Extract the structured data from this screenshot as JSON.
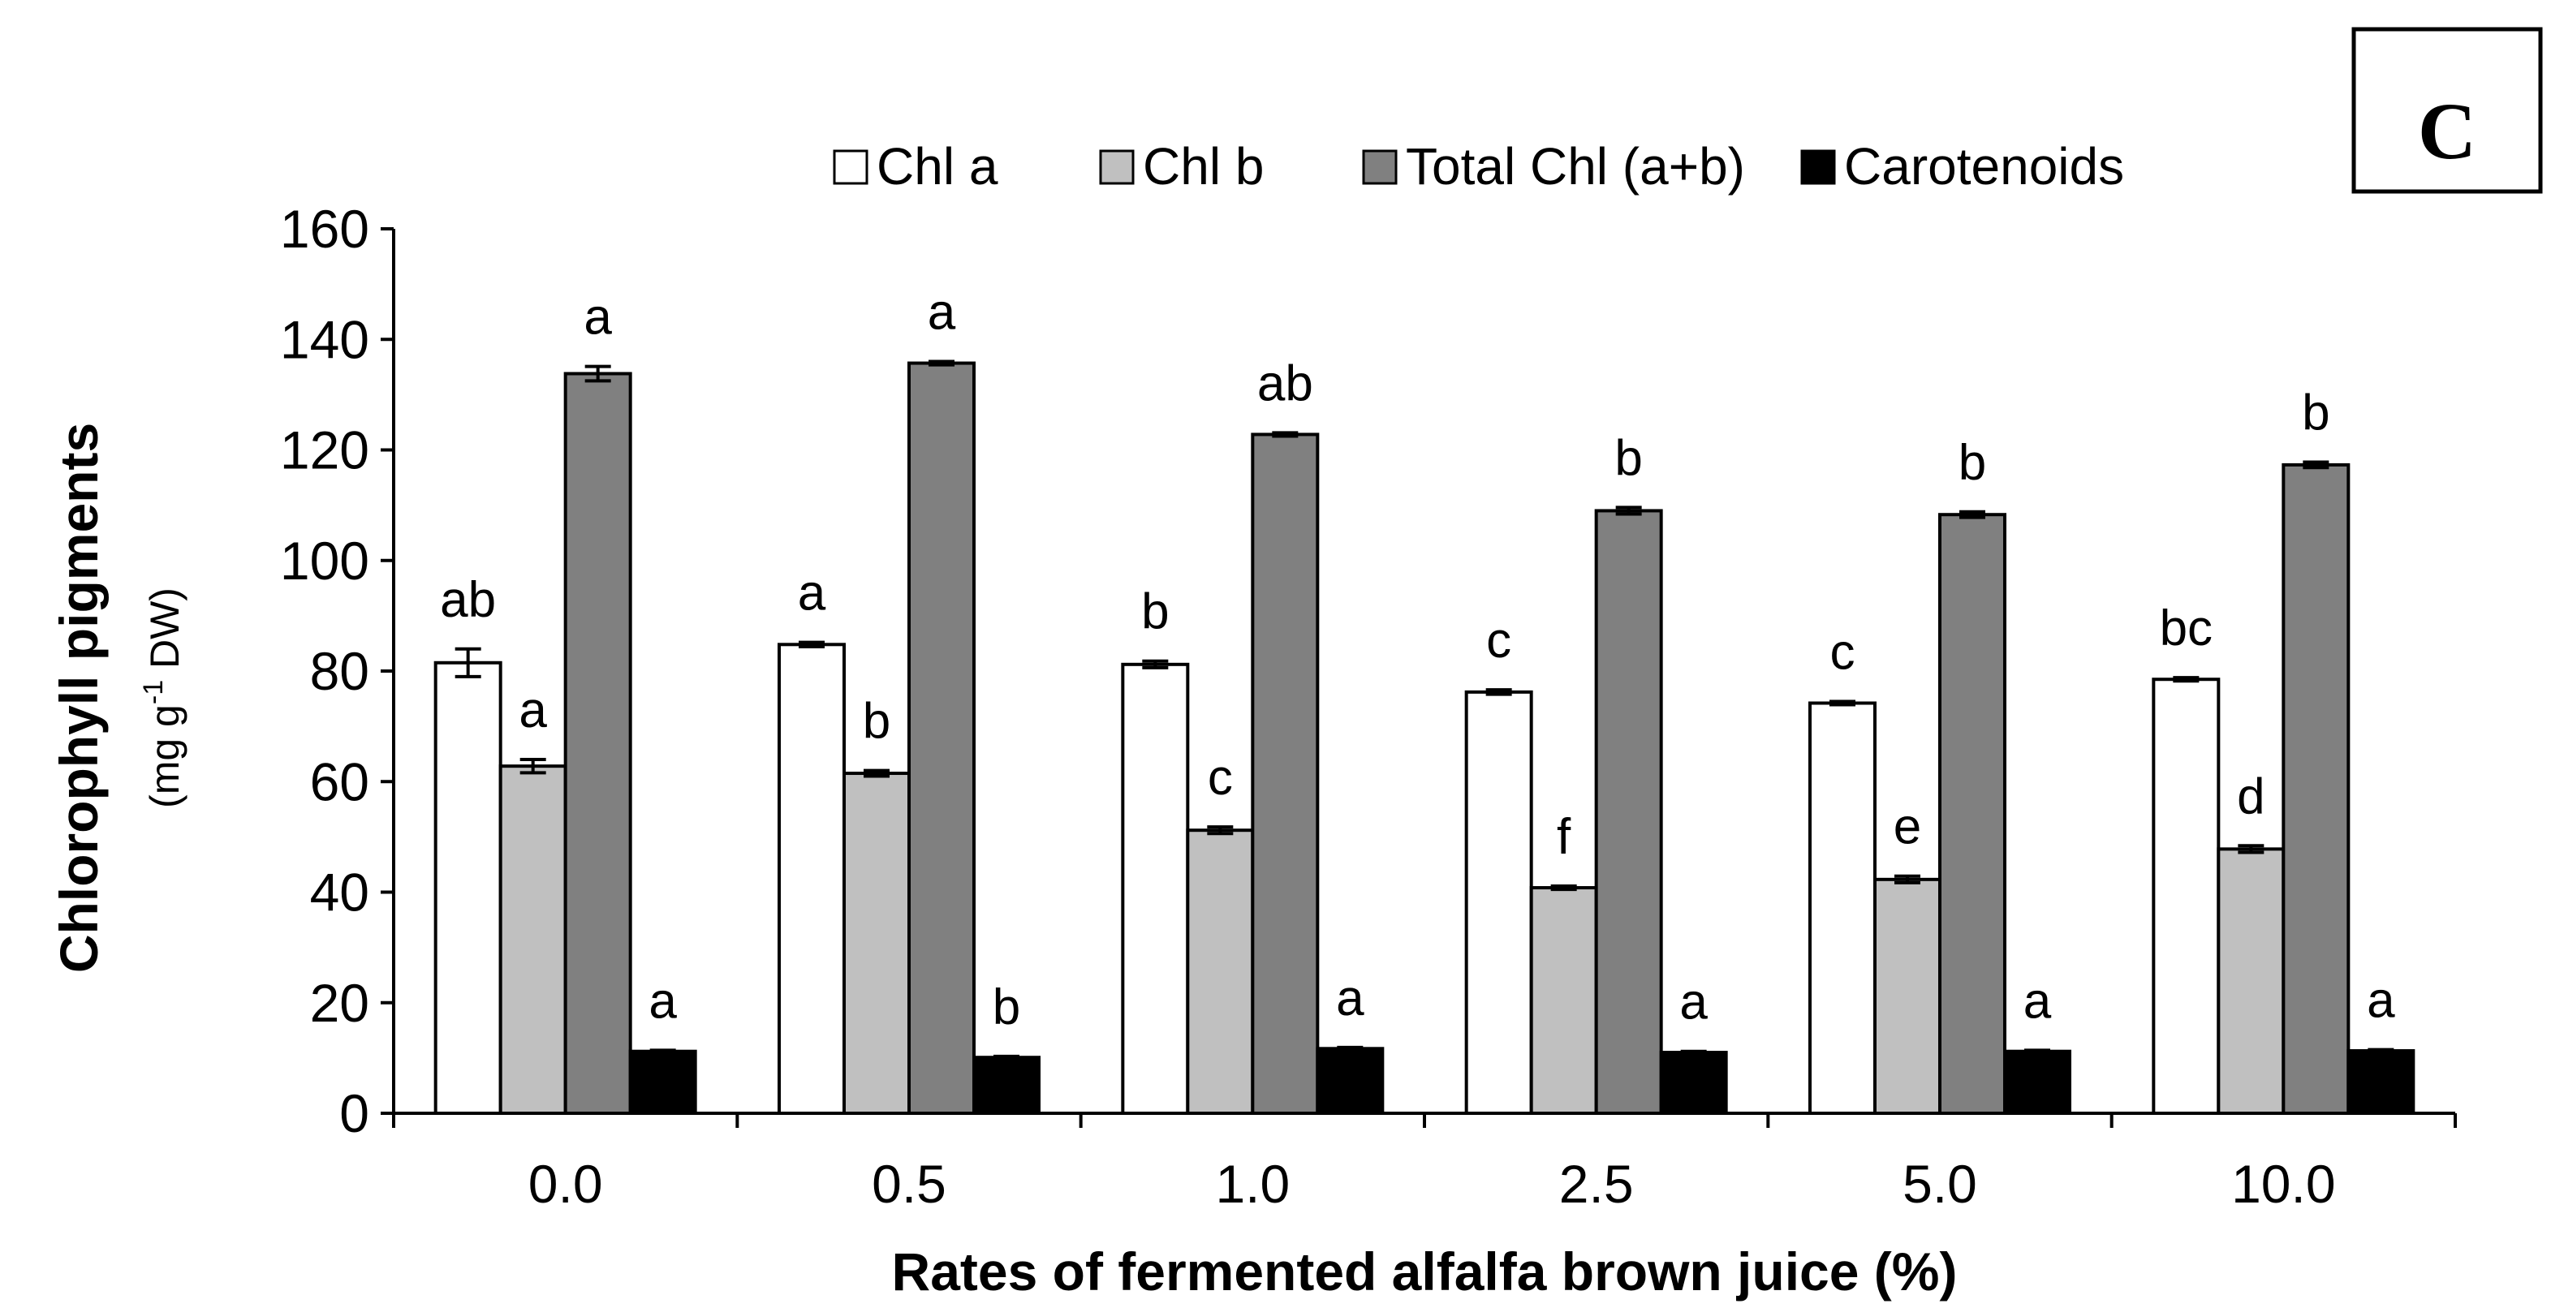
{
  "panel_label": "C",
  "colors": {
    "chl_a": "#ffffff",
    "chl_b": "#c0c0c0",
    "total": "#808080",
    "carotenoids": "#000000",
    "stroke": "#000000"
  },
  "chart_data": {
    "type": "bar",
    "title": "",
    "xlabel": "Rates of fermented alfalfa brown juice (%)",
    "ylabel": "Chlorophyll pigments",
    "ylabel_unit_prefix": "(mg g",
    "ylabel_unit_sup": "-1",
    "ylabel_unit_suffix": " DW)",
    "ylim": [
      0,
      160
    ],
    "yticks": [
      "0",
      "20",
      "40",
      "60",
      "80",
      "100",
      "120",
      "140",
      "160"
    ],
    "categories": [
      "0.0",
      "0.5",
      "1.0",
      "2.5",
      "5.0",
      "10.0"
    ],
    "legend_position": "top",
    "series": [
      {
        "name": "Chl a",
        "color_key": "chl_a",
        "values": [
          81.5,
          84.8,
          81.2,
          76.2,
          74.2,
          78.5
        ],
        "errors": [
          2.5,
          0.4,
          0.6,
          0.4,
          0.3,
          0.3
        ],
        "letters": [
          "ab",
          "a",
          "b",
          "c",
          "c",
          "bc"
        ]
      },
      {
        "name": "Chl b",
        "color_key": "chl_b",
        "values": [
          62.8,
          61.5,
          51.2,
          40.8,
          42.3,
          47.8
        ],
        "errors": [
          1.2,
          0.5,
          0.6,
          0.3,
          0.6,
          0.6
        ],
        "letters": [
          "a",
          "b",
          "c",
          "f",
          "e",
          "d"
        ]
      },
      {
        "name": "Total Chl (a+b)",
        "color_key": "total",
        "values": [
          133.8,
          135.7,
          122.8,
          109.0,
          108.3,
          117.3
        ],
        "errors": [
          1.3,
          0.3,
          0.3,
          0.6,
          0.5,
          0.5
        ],
        "letters": [
          "a",
          "a",
          "ab",
          "b",
          "b",
          "b"
        ]
      },
      {
        "name": "Carotenoids",
        "color_key": "carotenoids",
        "values": [
          11.2,
          10.1,
          11.7,
          11.0,
          11.2,
          11.3
        ],
        "errors": [
          0.2,
          0.2,
          0.2,
          0.2,
          0.2,
          0.2
        ],
        "letters": [
          "a",
          "b",
          "a",
          "a",
          "a",
          "a"
        ]
      }
    ]
  }
}
